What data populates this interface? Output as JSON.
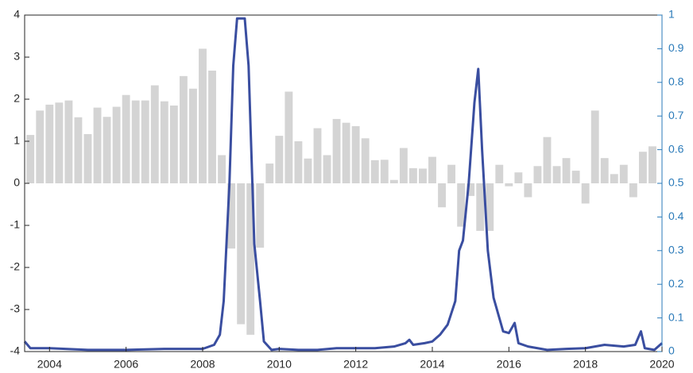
{
  "chart_data": {
    "type": "bar_line",
    "xlim": [
      2003.35,
      2020
    ],
    "xticks": [
      2004,
      2006,
      2008,
      2010,
      2012,
      2014,
      2016,
      2018,
      2020
    ],
    "ylim": [
      -4,
      4
    ],
    "yticks": [
      -4,
      -3,
      -2,
      -1,
      0,
      1,
      2,
      3,
      4
    ],
    "y2lim": [
      0,
      1
    ],
    "y2ticks": [
      0,
      0.1,
      0.2,
      0.3,
      0.4,
      0.5,
      0.6,
      0.7,
      0.8,
      0.9,
      1
    ],
    "y2color": "#2a7ab9",
    "series": [
      {
        "type": "bar",
        "color": "#d4d4d4",
        "x": [
          2003.5,
          2003.75,
          2004,
          2004.25,
          2004.5,
          2004.75,
          2005,
          2005.25,
          2005.5,
          2005.75,
          2006,
          2006.25,
          2006.5,
          2006.75,
          2007,
          2007.25,
          2007.5,
          2007.75,
          2008,
          2008.25,
          2008.5,
          2008.75,
          2009,
          2009.25,
          2009.5,
          2009.75,
          2010,
          2010.25,
          2010.5,
          2010.75,
          2011,
          2011.25,
          2011.5,
          2011.75,
          2012,
          2012.25,
          2012.5,
          2012.75,
          2013,
          2013.25,
          2013.5,
          2013.75,
          2014,
          2014.25,
          2014.5,
          2014.75,
          2015,
          2015.25,
          2015.5,
          2015.75,
          2016,
          2016.25,
          2016.5,
          2016.75,
          2017,
          2017.25,
          2017.5,
          2017.75,
          2018,
          2018.25,
          2018.5,
          2018.75,
          2019,
          2019.25,
          2019.5,
          2019.75
        ],
        "values": [
          1.15,
          1.73,
          1.87,
          1.92,
          1.97,
          1.57,
          1.17,
          1.8,
          1.58,
          1.82,
          2.1,
          1.97,
          1.97,
          2.33,
          1.95,
          1.85,
          2.55,
          2.25,
          3.2,
          2.68,
          0.67,
          -1.55,
          -3.35,
          -3.6,
          -1.53,
          0.47,
          1.13,
          2.18,
          1.0,
          0.59,
          1.31,
          0.67,
          1.53,
          1.44,
          1.36,
          1.07,
          0.55,
          0.56,
          0.08,
          0.84,
          0.36,
          0.35,
          0.63,
          -0.57,
          0.44,
          -1.03,
          -0.3,
          -1.13,
          -1.13,
          0.44,
          -0.07,
          0.26,
          -0.33,
          0.41,
          1.1,
          0.41,
          0.6,
          0.3,
          -0.48,
          1.73,
          0.6,
          0.22,
          0.44,
          -0.33,
          0.75,
          0.88
        ]
      },
      {
        "type": "line",
        "axis": "y2",
        "color": "#3a4ea0",
        "x": [
          2003.35,
          2003.5,
          2004,
          2005,
          2006,
          2007,
          2008,
          2008.3,
          2008.45,
          2008.55,
          2008.7,
          2008.8,
          2008.9,
          2009,
          2009.1,
          2009.2,
          2009.35,
          2009.5,
          2009.6,
          2009.8,
          2010,
          2010.5,
          2011,
          2011.5,
          2012,
          2012.5,
          2013,
          2013.3,
          2013.4,
          2013.5,
          2013.8,
          2014,
          2014.2,
          2014.4,
          2014.6,
          2014.7,
          2014.8,
          2014.95,
          2015.1,
          2015.2,
          2015.3,
          2015.45,
          2015.6,
          2015.75,
          2015.85,
          2016,
          2016.1,
          2016.15,
          2016.25,
          2016.5,
          2017,
          2017.5,
          2018,
          2018.5,
          2019,
          2019.3,
          2019.45,
          2019.55,
          2019.8,
          2020
        ],
        "values": [
          0.03,
          0.01,
          0.01,
          0.005,
          0.005,
          0.008,
          0.008,
          0.02,
          0.05,
          0.15,
          0.5,
          0.85,
          0.99,
          0.99,
          0.99,
          0.85,
          0.32,
          0.15,
          0.03,
          0.005,
          0.008,
          0.005,
          0.005,
          0.01,
          0.01,
          0.01,
          0.015,
          0.025,
          0.035,
          0.02,
          0.025,
          0.03,
          0.05,
          0.08,
          0.15,
          0.3,
          0.33,
          0.5,
          0.74,
          0.84,
          0.6,
          0.3,
          0.16,
          0.1,
          0.06,
          0.055,
          0.075,
          0.085,
          0.025,
          0.015,
          0.005,
          0.008,
          0.01,
          0.02,
          0.015,
          0.02,
          0.06,
          0.01,
          0.005,
          0.025
        ]
      }
    ]
  }
}
